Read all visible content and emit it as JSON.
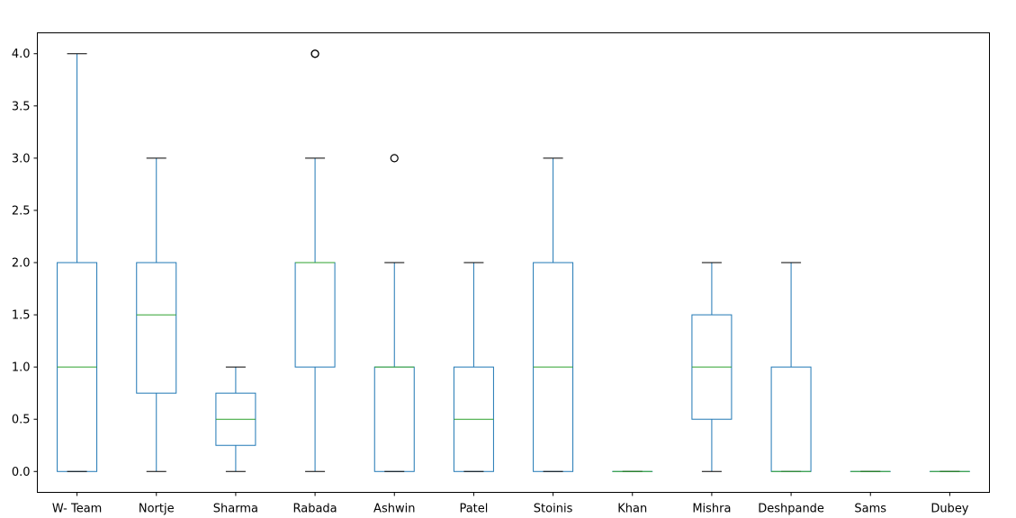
{
  "chart_data": {
    "type": "box",
    "title": "",
    "xlabel": "",
    "ylabel": "",
    "ylim": [
      -0.2,
      4.2
    ],
    "yticks": [
      0.0,
      0.5,
      1.0,
      1.5,
      2.0,
      2.5,
      3.0,
      3.5,
      4.0
    ],
    "ytick_labels": [
      "0.0",
      "0.5",
      "1.0",
      "1.5",
      "2.0",
      "2.5",
      "3.0",
      "3.5",
      "4.0"
    ],
    "grid": false,
    "categories": [
      "W- Team",
      "Nortje",
      "Sharma",
      "Rabada",
      "Ashwin",
      "Patel",
      "Stoinis",
      "Khan",
      "Mishra",
      "Deshpande",
      "Sams",
      "Dubey"
    ],
    "boxes": [
      {
        "whisker_low": 0.0,
        "q1": 0.0,
        "median": 1.0,
        "q3": 2.0,
        "whisker_high": 4.0,
        "outliers": []
      },
      {
        "whisker_low": 0.0,
        "q1": 0.75,
        "median": 1.5,
        "q3": 2.0,
        "whisker_high": 3.0,
        "outliers": []
      },
      {
        "whisker_low": 0.0,
        "q1": 0.25,
        "median": 0.5,
        "q3": 0.75,
        "whisker_high": 1.0,
        "outliers": []
      },
      {
        "whisker_low": 0.0,
        "q1": 1.0,
        "median": 2.0,
        "q3": 2.0,
        "whisker_high": 3.0,
        "outliers": [
          4.0,
          4.0
        ]
      },
      {
        "whisker_low": 0.0,
        "q1": 0.0,
        "median": 1.0,
        "q3": 1.0,
        "whisker_high": 2.0,
        "outliers": [
          3.0
        ]
      },
      {
        "whisker_low": 0.0,
        "q1": 0.0,
        "median": 0.5,
        "q3": 1.0,
        "whisker_high": 2.0,
        "outliers": []
      },
      {
        "whisker_low": 0.0,
        "q1": 0.0,
        "median": 1.0,
        "q3": 2.0,
        "whisker_high": 3.0,
        "outliers": []
      },
      {
        "whisker_low": 0.0,
        "q1": 0.0,
        "median": 0.0,
        "q3": 0.0,
        "whisker_high": 0.0,
        "outliers": []
      },
      {
        "whisker_low": 0.0,
        "q1": 0.5,
        "median": 1.0,
        "q3": 1.5,
        "whisker_high": 2.0,
        "outliers": []
      },
      {
        "whisker_low": 0.0,
        "q1": 0.0,
        "median": 0.0,
        "q3": 1.0,
        "whisker_high": 2.0,
        "outliers": []
      },
      {
        "whisker_low": 0.0,
        "q1": 0.0,
        "median": 0.0,
        "q3": 0.0,
        "whisker_high": 0.0,
        "outliers": []
      },
      {
        "whisker_low": 0.0,
        "q1": 0.0,
        "median": 0.0,
        "q3": 0.0,
        "whisker_high": 0.0,
        "outliers": []
      }
    ],
    "colors": {
      "box": "#1f77b4",
      "median": "#2ca02c",
      "cap": "#000000",
      "outlier": "#000000",
      "axis": "#000000"
    }
  }
}
